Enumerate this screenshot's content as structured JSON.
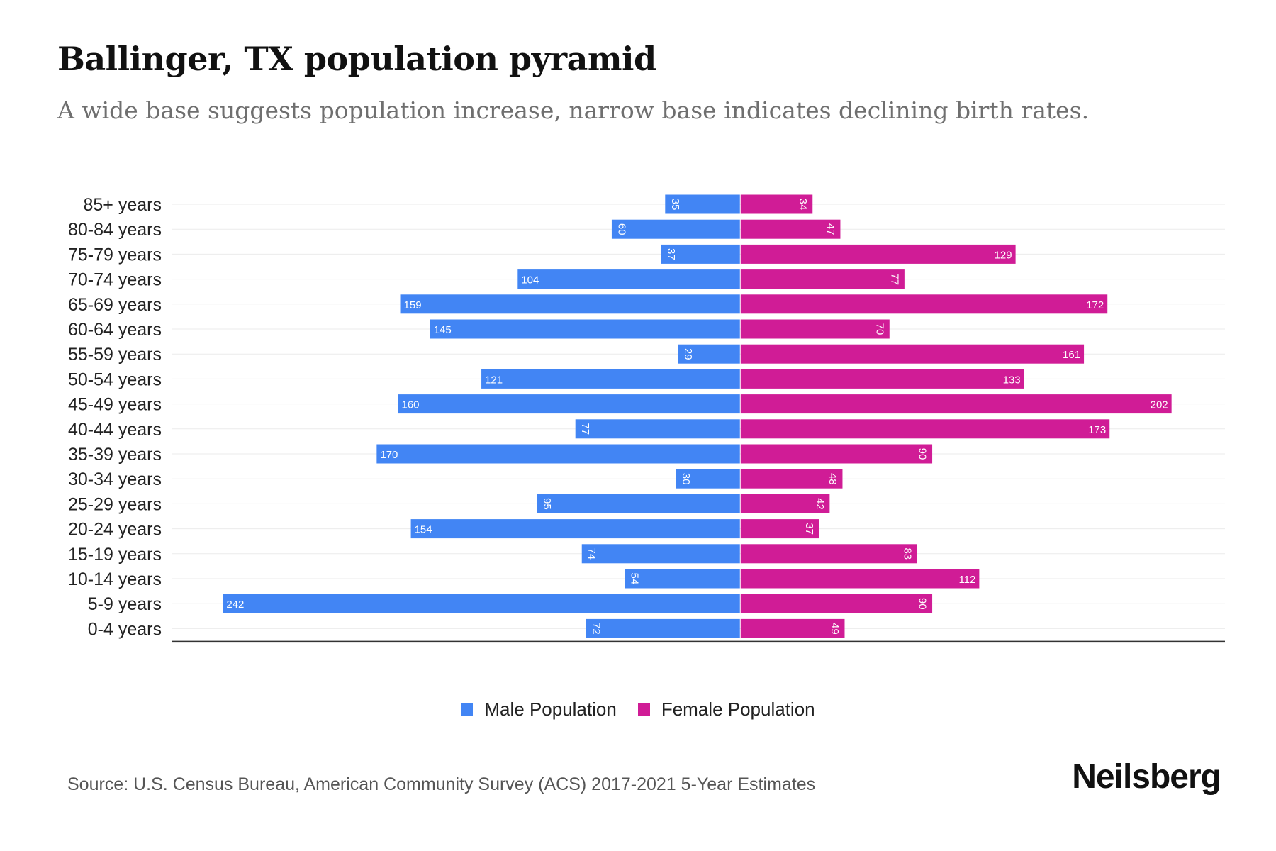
{
  "chart_data": {
    "type": "bar",
    "orientation": "horizontal-pyramid",
    "title": "Ballinger, TX population pyramid",
    "subtitle": "A wide base suggests population increase, narrow base indicates declining birth rates.",
    "categories": [
      "85+ years",
      "80-84 years",
      "75-79 years",
      "70-74 years",
      "65-69 years",
      "60-64 years",
      "55-59 years",
      "50-54 years",
      "45-49 years",
      "40-44 years",
      "35-39 years",
      "30-34 years",
      "25-29 years",
      "20-24 years",
      "15-19 years",
      "10-14 years",
      "5-9 years",
      "0-4 years"
    ],
    "series": [
      {
        "name": "Male Population",
        "color": "#4285f4",
        "values": [
          35,
          60,
          37,
          104,
          159,
          145,
          29,
          121,
          160,
          77,
          170,
          30,
          95,
          154,
          74,
          54,
          242,
          72
        ]
      },
      {
        "name": "Female Population",
        "color": "#d01c96",
        "values": [
          34,
          47,
          129,
          77,
          172,
          70,
          161,
          133,
          202,
          173,
          90,
          48,
          42,
          37,
          83,
          112,
          90,
          49
        ]
      }
    ],
    "xlim": [
      -266,
      227
    ],
    "grid": true,
    "legend_position": "bottom-center"
  },
  "source": "Source: U.S. Census Bureau, American Community Survey (ACS) 2017-2021 5-Year Estimates",
  "brand": "Neilsberg"
}
